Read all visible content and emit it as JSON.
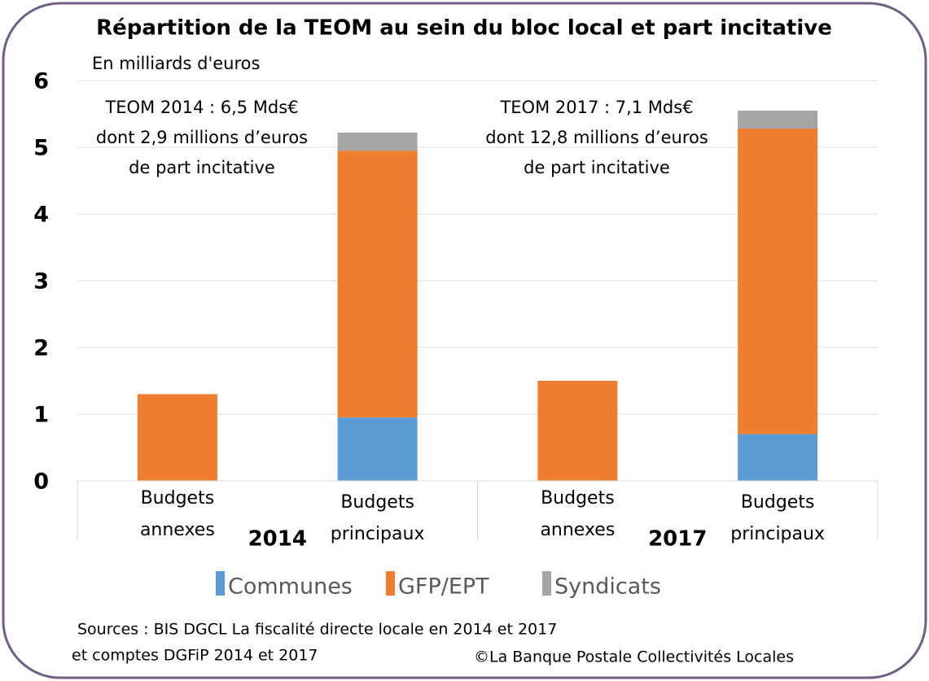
{
  "chart_data": {
    "type": "stacked_bar",
    "title": "Répartition de la TEOM au sein du bloc local et part incitative",
    "subtitle": "En milliards d'euros",
    "groups": [
      {
        "label": "2014",
        "categories": [
          0,
          1
        ]
      },
      {
        "label": "2017",
        "categories": [
          2,
          3
        ]
      }
    ],
    "categories": [
      "Budgets annexes",
      "Budgets principaux",
      "Budgets annexes",
      "Budgets principaux"
    ],
    "series": [
      {
        "name": "Communes",
        "color": "#5b9bd5",
        "values": [
          0,
          0.95,
          0,
          0.7
        ]
      },
      {
        "name": "GFP/EPT",
        "color": "#ed7d31",
        "values": [
          1.3,
          4.0,
          1.5,
          4.58
        ]
      },
      {
        "name": "Syndicats",
        "color": "#a5a5a5",
        "values": [
          0,
          0.27,
          0,
          0.27
        ]
      }
    ],
    "ylim": [
      0,
      6
    ],
    "yticks": [
      0,
      1,
      2,
      3,
      4,
      5,
      6
    ],
    "grid": true,
    "legend": "bottom",
    "annotations": [
      [
        "TEOM 2014 :  6,5 Mds€",
        "dont 2,9 millions d’euros",
        "de part incitative"
      ],
      [
        "TEOM 2017 : 7,1 Mds€",
        "dont 12,8 millions d’euros",
        "de part incitative"
      ]
    ],
    "sources": [
      "Sources : BIS DGCL La fiscalité directe locale en 2014 et 2017",
      "et comptes DGFiP 2014 et 2017"
    ],
    "copyright": "©La Banque Postale Collectivités Locales"
  }
}
